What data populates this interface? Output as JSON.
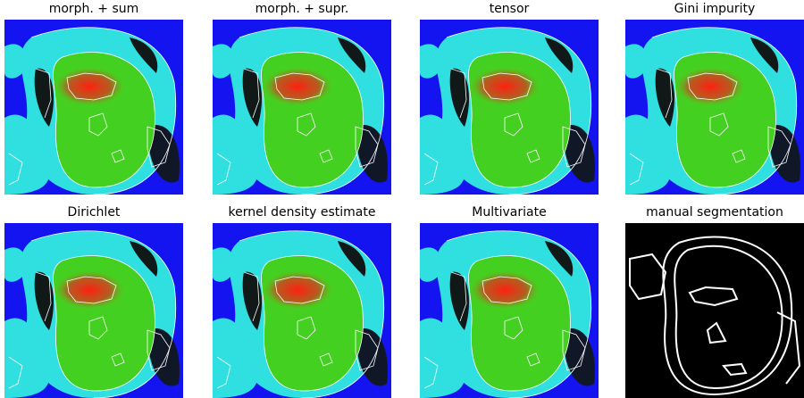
{
  "panels": [
    {
      "title": "morph. + sum"
    },
    {
      "title": "morph. + supr."
    },
    {
      "title": "tensor"
    },
    {
      "title": "Gini impurity"
    },
    {
      "title": "Dirichlet"
    },
    {
      "title": "kernel density estimate"
    },
    {
      "title": "Multivariate"
    },
    {
      "title": "manual segmentation"
    }
  ]
}
